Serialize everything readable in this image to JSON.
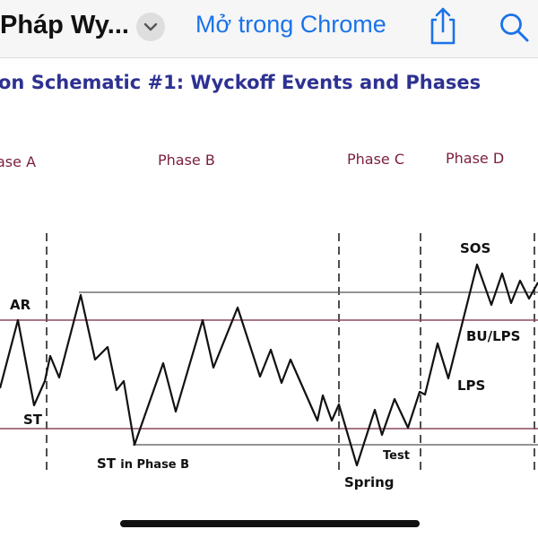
{
  "browser": {
    "page_title": "Pháp Wy...",
    "open_in_label": "Mở trong Chrome",
    "icons": {
      "chevron": "chevron-down-icon",
      "share": "share-icon",
      "search": "search-icon"
    },
    "accent_color": "#1a73e8"
  },
  "diagram": {
    "title": "on Schematic #1: Wyckoff Events and Phases",
    "phases": [
      "ase A",
      "Phase B",
      "Phase C",
      "Phase D"
    ],
    "events": {
      "ar": "AR",
      "st": "ST",
      "st_phase_b_main": "ST",
      "st_phase_b_sub": "in Phase B",
      "spring": "Spring",
      "test": "Test",
      "lps": "LPS",
      "bu_lps": "BU/LPS",
      "sos": "SOS"
    },
    "colors": {
      "title": "#2e3192",
      "phase_labels": "#7a1f3d",
      "price_line": "#111111",
      "range_lines": "#8b4a5a"
    }
  }
}
